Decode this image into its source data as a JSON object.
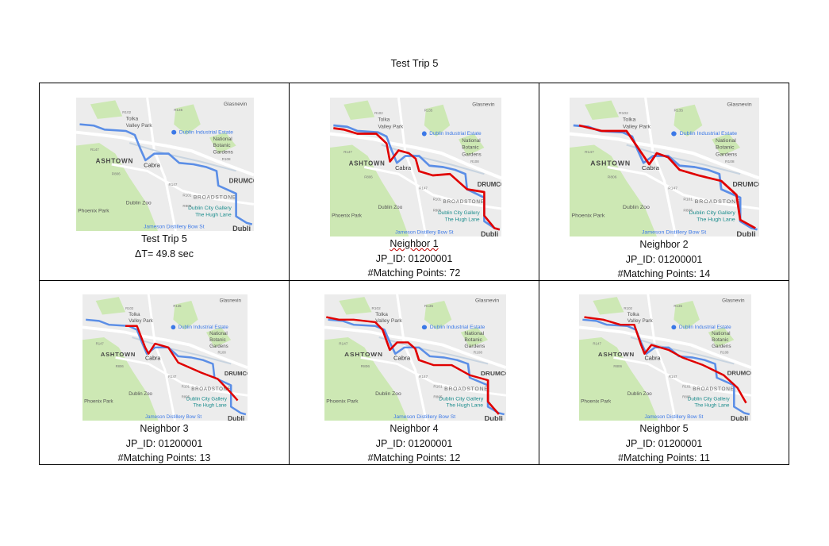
{
  "page_title": "Test Trip 5",
  "map_labels": {
    "glasnevin": "Glasnevin",
    "tolka": "Tolka",
    "valley_park": "Valley Park",
    "estate": "Dublin Industrial Estate",
    "national": "National",
    "botanic": "Botanic",
    "gardens": "Gardens",
    "ashtown": "ASHTOWN",
    "cabra": "Cabra",
    "drumco": "DRUMCO",
    "broadstone": "BROADSTONE",
    "zoo": "Dublin Zoo",
    "phoenix": "Phoenix Park",
    "gallery1": "Dublin City Gallery",
    "gallery2": "The Hugh Lane",
    "jameson": "Jameson Distillery Bow St",
    "dubli": "Dubli",
    "r135": "R135",
    "r102": "R102",
    "r147": "R147",
    "r108": "R108",
    "r806": "R806",
    "r101": "R101",
    "r805": "R805"
  },
  "cells": [
    {
      "title": "Test Trip 5",
      "line2": "ΔT= 49.8 sec",
      "line3": ""
    },
    {
      "title": "Neighbor 1",
      "line2": "JP_ID: 01200001",
      "line3": "#Matching Points: 72"
    },
    {
      "title": "Neighbor 2",
      "line2": "JP_ID: 01200001",
      "line3": "#Matching Points: 14"
    },
    {
      "title": "Neighbor 3",
      "line2": "JP_ID: 01200001",
      "line3": "#Matching Points: 13"
    },
    {
      "title": "Neighbor 4",
      "line2": "JP_ID: 01200001",
      "line3": "#Matching Points: 12"
    },
    {
      "title": "Neighbor 5",
      "line2": "JP_ID: 01200001",
      "line3": "#Matching Points: 11"
    }
  ],
  "colors": {
    "test_route": "#5b8ee6",
    "neighbor_route": "#e00000",
    "park": "#cde8b4",
    "land": "#ececec",
    "water": "#aadaff"
  }
}
